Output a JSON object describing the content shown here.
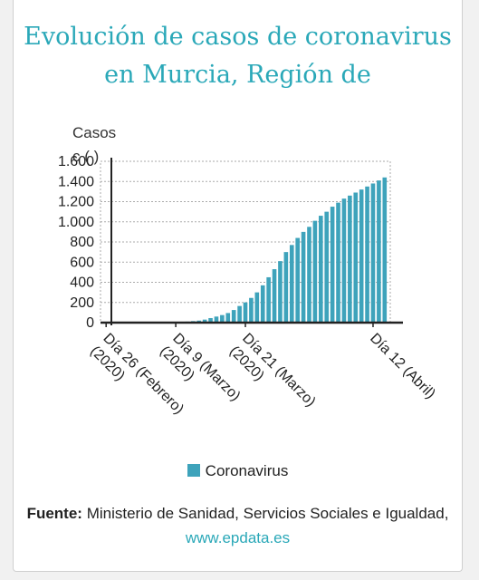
{
  "title_line1": "Evolución de casos de coronavirus",
  "title_line2": "en Murcia, Región de",
  "ylabel": "Casos",
  "ylabel_suffix": "c ( )",
  "legend_label": "Coronavirus",
  "source_prefix": "Fuente:",
  "source_text": " Ministerio de Sanidad, Servicios Sociales e Igualdad, ",
  "source_link": "www.epdata.es",
  "colors": {
    "accent": "#2aa8b8",
    "bar": "#3ea3bb"
  },
  "chart_data": {
    "type": "bar",
    "title": "Evolución de casos de coronavirus en Murcia, Región de",
    "xlabel": "",
    "ylabel": "Casos",
    "ylim": [
      0,
      1600
    ],
    "yticks": [
      0,
      200,
      400,
      600,
      800,
      1000,
      1200,
      1400,
      1600
    ],
    "ytick_labels": [
      "0",
      "200",
      "400",
      "600",
      "800",
      "1.000",
      "1.200",
      "1.400",
      "1.600"
    ],
    "x_start": "2020-02-26",
    "xtick_labels": [
      {
        "label": "Día 26 (Febrero) (2020)",
        "date": "2020-02-26"
      },
      {
        "label": "Día 9 (Marzo) (2020)",
        "date": "2020-03-09"
      },
      {
        "label": "Día 21 (Marzo) (2020)",
        "date": "2020-03-21"
      },
      {
        "label": "Día 12 (Abril)",
        "date": "2020-04-12"
      }
    ],
    "grid": true,
    "legend": "bottom",
    "series": [
      {
        "name": "Coronavirus",
        "values": [
          0,
          0,
          0,
          0,
          0,
          0,
          0,
          0,
          0,
          0,
          0,
          1,
          2,
          5,
          10,
          15,
          20,
          30,
          45,
          60,
          75,
          95,
          125,
          165,
          200,
          245,
          300,
          370,
          450,
          530,
          610,
          700,
          770,
          840,
          900,
          950,
          1010,
          1060,
          1100,
          1150,
          1190,
          1230,
          1260,
          1290,
          1320,
          1350,
          1380,
          1410,
          1440
        ]
      }
    ]
  }
}
